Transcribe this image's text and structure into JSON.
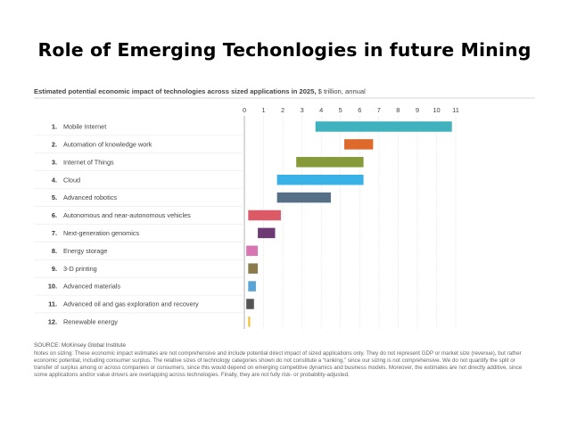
{
  "slide": {
    "title": "Role of Emerging Techonlogies in future Mining"
  },
  "colors": {
    "teal": "#3fb2be",
    "orange": "#dd6a2c",
    "olive": "#869a3a",
    "sky": "#39b0e6",
    "slate": "#546f86",
    "red": "#db5a66",
    "purple": "#6e3a74",
    "pink": "#d776b2",
    "brown": "#8a7a4c",
    "blue": "#5aa3d6",
    "dark": "#555555",
    "yellow": "#f0c030"
  },
  "chart_data": {
    "type": "bar",
    "orientation": "horizontal-range",
    "title": "Estimated potential economic impact of technologies across sized applications in 2025,",
    "subtitle": "$ trillion, annual",
    "xlim": [
      0,
      11
    ],
    "ticks": [
      0,
      1,
      2,
      3,
      4,
      5,
      6,
      7,
      8,
      9,
      10,
      11
    ],
    "grid": true,
    "categories": [
      {
        "num": "1.",
        "label": "Mobile Internet",
        "low": 3.7,
        "high": 10.8,
        "color": "teal"
      },
      {
        "num": "2.",
        "label": "Automation of knowledge work",
        "low": 5.2,
        "high": 6.7,
        "color": "orange"
      },
      {
        "num": "3.",
        "label": "Internet of Things",
        "low": 2.7,
        "high": 6.2,
        "color": "olive"
      },
      {
        "num": "4.",
        "label": "Cloud",
        "low": 1.7,
        "high": 6.2,
        "color": "sky"
      },
      {
        "num": "5.",
        "label": "Advanced robotics",
        "low": 1.7,
        "high": 4.5,
        "color": "slate"
      },
      {
        "num": "6.",
        "label": "Autonomous and near-autonomous vehicles",
        "low": 0.2,
        "high": 1.9,
        "color": "red"
      },
      {
        "num": "7.",
        "label": "Next-generation genomics",
        "low": 0.7,
        "high": 1.6,
        "color": "purple"
      },
      {
        "num": "8.",
        "label": "Energy storage",
        "low": 0.1,
        "high": 0.7,
        "color": "pink"
      },
      {
        "num": "9.",
        "label": "3-D printing",
        "low": 0.2,
        "high": 0.7,
        "color": "brown"
      },
      {
        "num": "10.",
        "label": "Advanced materials",
        "low": 0.2,
        "high": 0.6,
        "color": "blue"
      },
      {
        "num": "11.",
        "label": "Advanced oil and gas exploration and recovery",
        "low": 0.1,
        "high": 0.5,
        "color": "dark"
      },
      {
        "num": "12.",
        "label": "Renewable energy",
        "low": 0.2,
        "high": 0.3,
        "color": "yellow"
      }
    ]
  },
  "notes": {
    "source": "SOURCE: McKinsey Global Institute",
    "text": "Notes on sizing: These economic impact estimates are not comprehensive and include potential direct impact of sized applications only. They do not represent GDP or market size (revenue), but rather economic potential, including consumer surplus. The relative sizes of technology categories shown do not constitute a “ranking,” since our sizing is not comprehensive. We do not quantify the split or transfer of surplus among or across companies or consumers, since this would depend on emerging competitive dynamics and business models. Moreover, the estimates are not directly additive, since some applications and/or value drivers are overlapping across technologies. Finally, they are not fully risk- or probability-adjusted."
  }
}
